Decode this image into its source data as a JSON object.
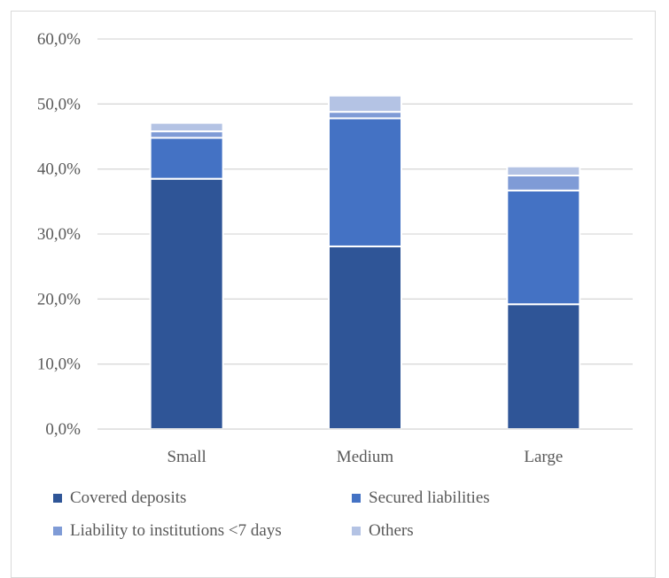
{
  "chart_data": {
    "type": "bar",
    "stacked": true,
    "categories": [
      "Small",
      "Medium",
      "Large"
    ],
    "series": [
      {
        "name": "Covered deposits",
        "color": "#2f5597",
        "values": [
          38.5,
          28.1,
          19.2
        ]
      },
      {
        "name": "Secured liabilities",
        "color": "#4472c4",
        "values": [
          6.3,
          19.7,
          17.5
        ]
      },
      {
        "name": "Liability to institutions <7 days",
        "color": "#7f9bd6",
        "values": [
          1.0,
          1.0,
          2.3
        ]
      },
      {
        "name": "Others",
        "color": "#b4c3e4",
        "values": [
          1.3,
          2.5,
          1.4
        ]
      }
    ],
    "yticks": [
      "0,0%",
      "10,0%",
      "20,0%",
      "30,0%",
      "40,0%",
      "50,0%",
      "60,0%"
    ],
    "ylim": [
      0,
      60
    ],
    "grid": true,
    "legend_position": "bottom"
  }
}
